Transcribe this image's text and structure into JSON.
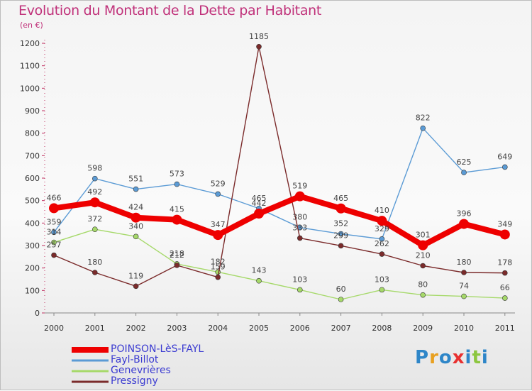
{
  "header": {
    "title": "Evolution du Montant de la Dette par Habitant",
    "subtitle": "(en €)"
  },
  "logo": {
    "letters": [
      "P",
      "r",
      "o",
      "x",
      "i",
      "t",
      "i"
    ],
    "colors": [
      "#2e86c8",
      "#e8a020",
      "#2e86c8",
      "#e83030",
      "#2e86c8",
      "#8cc63f",
      "#2e86c8"
    ]
  },
  "chart_data": {
    "type": "line",
    "title": "Evolution du Montant de la Dette par Habitant",
    "subtitle": "(en €)",
    "xlabel": "",
    "ylabel": "",
    "categories": [
      "2000",
      "2001",
      "2002",
      "2003",
      "2004",
      "2005",
      "2006",
      "2007",
      "2008",
      "2009",
      "2010",
      "2011"
    ],
    "ylim": [
      0,
      1200
    ],
    "yticks": [
      0,
      100,
      200,
      300,
      400,
      500,
      600,
      700,
      800,
      900,
      1000,
      1100,
      1200
    ],
    "grid": false,
    "legend_position": "bottom-left",
    "series": [
      {
        "name": "POINSON-LèS-FAYL",
        "color": "#ee0000",
        "width": "thick",
        "values": [
          466,
          492,
          424,
          415,
          347,
          442,
          519,
          465,
          410,
          301,
          396,
          349
        ],
        "labels": [
          "466",
          "492",
          "424",
          "415",
          "347",
          "442",
          "519",
          "465",
          "410",
          "301",
          "396",
          "349"
        ]
      },
      {
        "name": "Fayl-Billot",
        "color": "#5b9bd5",
        "width": "thin",
        "values": [
          359,
          598,
          551,
          573,
          529,
          465,
          380,
          352,
          329,
          822,
          625,
          649
        ],
        "labels": [
          "359",
          "598",
          "551",
          "573",
          "529",
          "465",
          "380",
          "352",
          "329",
          "822",
          "625",
          "649"
        ]
      },
      {
        "name": "Genevrières",
        "color": "#a6d96a",
        "width": "thin",
        "values": [
          314,
          372,
          340,
          218,
          182,
          143,
          103,
          60,
          103,
          80,
          74,
          66
        ],
        "labels": [
          "314",
          "372",
          "340",
          "218",
          "182",
          "143",
          "103",
          "60",
          "103",
          "80",
          "74",
          "66"
        ]
      },
      {
        "name": "Pressigny",
        "color": "#7b2b2b",
        "width": "thin",
        "values": [
          257,
          180,
          119,
          212,
          159,
          1185,
          333,
          299,
          262,
          210,
          180,
          178
        ],
        "labels": [
          "257",
          "180",
          "119",
          "212",
          "159",
          "1185",
          "333",
          "299",
          "262",
          "210",
          "180",
          "178"
        ]
      }
    ]
  }
}
